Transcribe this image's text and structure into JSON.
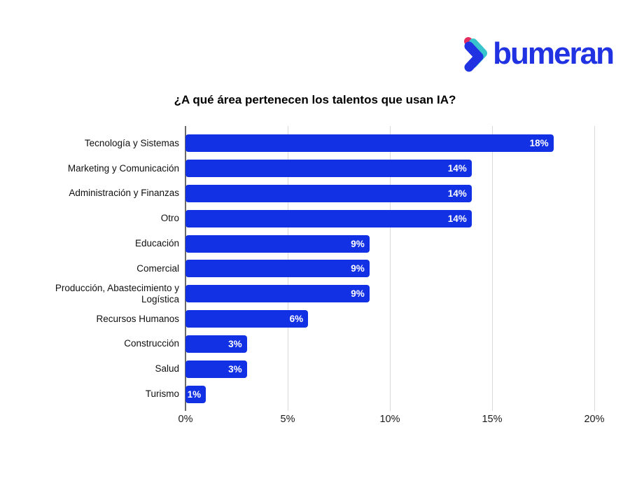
{
  "logo": {
    "brand": "bumeran",
    "icon": "bumeran-chevron-icon",
    "colors": {
      "blue": "#2132e2",
      "pink": "#e52c5e",
      "teal": "#38c4cc"
    }
  },
  "chart_data": {
    "type": "bar",
    "orientation": "horizontal",
    "title": "¿A qué área pertenecen los talentos que usan IA?",
    "categories": [
      "Tecnología y Sistemas",
      "Marketing y Comunicación",
      "Administración y Finanzas",
      "Otro",
      "Educación",
      "Comercial",
      "Producción, Abastecimiento y Logística",
      "Recursos Humanos",
      "Construcción",
      "Salud",
      "Turismo"
    ],
    "values": [
      18,
      14,
      14,
      14,
      9,
      9,
      9,
      6,
      3,
      3,
      1
    ],
    "value_labels": [
      "18%",
      "14%",
      "14%",
      "14%",
      "9%",
      "9%",
      "9%",
      "6%",
      "3%",
      "3%",
      "1%"
    ],
    "x_ticks": [
      "0%",
      "5%",
      "10%",
      "15%",
      "20%"
    ],
    "x_tick_values": [
      0,
      5,
      10,
      15,
      20
    ],
    "xlim": [
      0,
      20
    ],
    "xlabel": "",
    "ylabel": "",
    "grid": true,
    "legend": "none",
    "bar_color": "#1230e4",
    "value_label_color": "#ffffff",
    "gridline_color": "#d9d9d9",
    "axis_line_color": "#6b6b6b"
  }
}
